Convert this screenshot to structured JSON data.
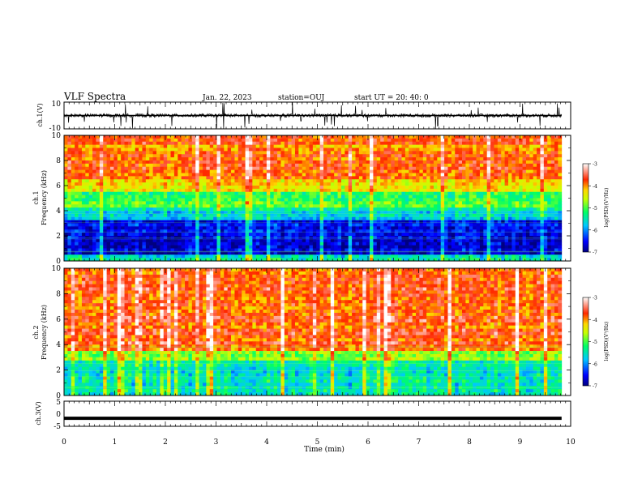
{
  "header": {
    "title": "VLF Spectra",
    "date": "Jan. 22, 2023",
    "station": "station=OUJ",
    "start": "start UT =  20: 40: 0"
  },
  "chart_data": [
    {
      "type": "line",
      "panel": "ch1-waveform",
      "ylabel": "ch.1(V)",
      "ylim": [
        -10,
        10
      ],
      "yticks": [
        "10",
        "-10"
      ],
      "baseline": 0,
      "series": [
        {
          "values": "noisy waveform, amplitude mostly within ±2 V with spikes to ±10 V"
        }
      ]
    },
    {
      "type": "heatmap",
      "panel": "ch1-spectrogram",
      "ylabel": "ch.1\nFrequency (kHz)",
      "ylim": [
        0,
        10
      ],
      "yticks": [
        "0",
        "2",
        "4",
        "6",
        "8",
        "10"
      ],
      "xlim": [
        0,
        10
      ],
      "colorbar": {
        "label": "log(PSD)(V²/Hz)",
        "min": -7,
        "max": -3,
        "ticks": [
          "-3",
          "-4",
          "-5",
          "-6",
          "-7"
        ]
      },
      "bands": [
        {
          "freq": [
            0,
            0.4
          ],
          "level": -5.5
        },
        {
          "freq": [
            0.4,
            3.3
          ],
          "level": -6.6
        },
        {
          "freq": [
            3.3,
            4.2
          ],
          "level": -5.6
        },
        {
          "freq": [
            4.2,
            5.5
          ],
          "level": -5.0
        },
        {
          "freq": [
            5.5,
            6.5
          ],
          "level": -4.4
        },
        {
          "freq": [
            6.5,
            10
          ],
          "level": -3.9
        }
      ]
    },
    {
      "type": "heatmap",
      "panel": "ch2-spectrogram",
      "ylabel": "ch.2\nFrequency (kHz)",
      "ylim": [
        0,
        10
      ],
      "yticks": [
        "0",
        "2",
        "4",
        "6",
        "8",
        "10"
      ],
      "xlim": [
        0,
        10
      ],
      "colorbar": {
        "label": "log(PSD)(V²/Hz)",
        "min": -7,
        "max": -3,
        "ticks": [
          "-3",
          "-4",
          "-5",
          "-6",
          "-7"
        ]
      },
      "bands": [
        {
          "freq": [
            0,
            2.8
          ],
          "level": -5.6
        },
        {
          "freq": [
            2.8,
            3.6
          ],
          "level": -4.8
        },
        {
          "freq": [
            3.6,
            10
          ],
          "level": -3.8
        }
      ]
    },
    {
      "type": "line",
      "panel": "ch3-waveform",
      "ylabel": "ch.3(V)",
      "ylim": [
        -5,
        5
      ],
      "yticks": [
        "5",
        "0",
        "-5"
      ],
      "series": [
        {
          "values": "constant ≈ -1.8 V"
        }
      ]
    }
  ],
  "xaxis": {
    "label": "Time (min)",
    "ticks": [
      "0",
      "1",
      "2",
      "3",
      "4",
      "5",
      "6",
      "7",
      "8",
      "9",
      "10"
    ],
    "data_end": 9.82
  }
}
